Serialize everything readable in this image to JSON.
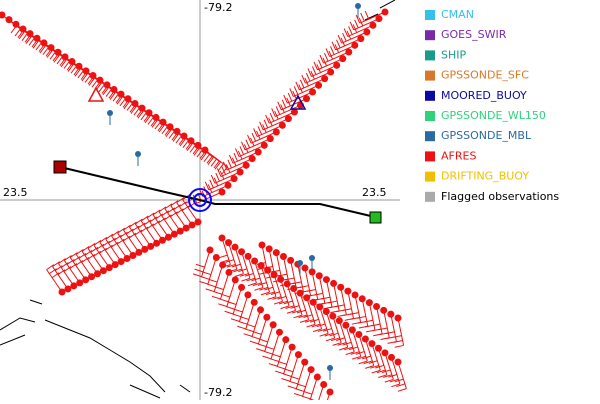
{
  "map": {
    "labels": {
      "top_lon": "-79.2",
      "bottom_lon": "-79.2",
      "left_lat": "23.5",
      "right_lat": "23.5"
    },
    "legend": [
      {
        "name": "CMAN",
        "color": "#33c3e8",
        "text_color": "#33c3e8"
      },
      {
        "name": "GOES_SWIR",
        "color": "#7a2aa8",
        "text_color": "#7a2aa8"
      },
      {
        "name": "SHIP",
        "color": "#1a9a8a",
        "text_color": "#1a9a8a"
      },
      {
        "name": "GPSSONDE_SFC",
        "color": "#d9782a",
        "text_color": "#d9782a"
      },
      {
        "name": "MOORED_BUOY",
        "color": "#0a0aa0",
        "text_color": "#0a0aa0"
      },
      {
        "name": "GPSSONDE_WL150",
        "color": "#2fd27a",
        "text_color": "#2fd27a"
      },
      {
        "name": "GPSSONDE_MBL",
        "color": "#2a6aa0",
        "text_color": "#2a6aa0"
      },
      {
        "name": "AFRES",
        "color": "#ee1111",
        "text_color": "#ee1111"
      },
      {
        "name": "DRIFTING_BUOY",
        "color": "#f0c000",
        "text_color": "#f0c000"
      },
      {
        "name": "Flagged observations",
        "color": "#aaaaaa",
        "text_color": "#000000"
      }
    ]
  }
}
